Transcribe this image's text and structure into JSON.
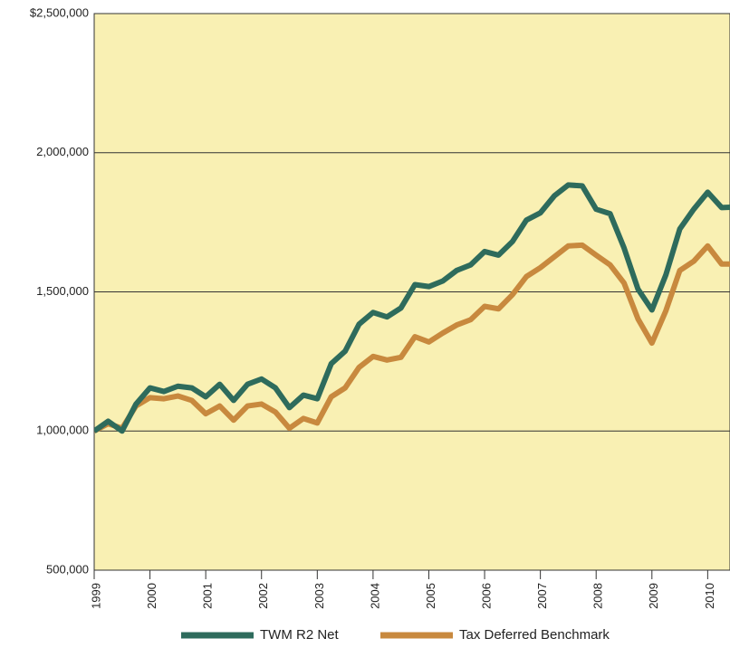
{
  "chart_data": {
    "type": "line",
    "x": [
      1999,
      1999.25,
      1999.5,
      1999.75,
      2000,
      2000.25,
      2000.5,
      2000.75,
      2001,
      2001.25,
      2001.5,
      2001.75,
      2002,
      2002.25,
      2002.5,
      2002.75,
      2003,
      2003.25,
      2003.5,
      2003.75,
      2004,
      2004.25,
      2004.5,
      2004.75,
      2005,
      2005.25,
      2005.5,
      2005.75,
      2006,
      2006.25,
      2006.5,
      2006.75,
      2007,
      2007.25,
      2007.5,
      2007.75,
      2008,
      2008.25,
      2008.5,
      2008.75,
      2009,
      2009.25,
      2009.5,
      2009.75,
      2010,
      2010.25,
      2010.5
    ],
    "series": [
      {
        "name": "TWM R2 Net",
        "color": "#2e6b5c",
        "values": [
          1000000,
          1035000,
          1000000,
          1097000,
          1155000,
          1142000,
          1161000,
          1155000,
          1123000,
          1168000,
          1110000,
          1168000,
          1187000,
          1155000,
          1084000,
          1129000,
          1116000,
          1242000,
          1287000,
          1384000,
          1426000,
          1410000,
          1442000,
          1526000,
          1519000,
          1539000,
          1577000,
          1597000,
          1645000,
          1632000,
          1681000,
          1758000,
          1784000,
          1845000,
          1884000,
          1881000,
          1797000,
          1781000,
          1658000,
          1510000,
          1435000,
          1561000,
          1726000,
          1797000,
          1858000,
          1803000,
          1805000
        ]
      },
      {
        "name": "Tax Deferred Benchmark",
        "color": "#c8893e",
        "values": [
          1000000,
          1026000,
          1010000,
          1090000,
          1120000,
          1116000,
          1126000,
          1110000,
          1062000,
          1090000,
          1039000,
          1090000,
          1097000,
          1068000,
          1010000,
          1045000,
          1029000,
          1123000,
          1155000,
          1229000,
          1268000,
          1255000,
          1265000,
          1339000,
          1320000,
          1352000,
          1381000,
          1400000,
          1448000,
          1439000,
          1490000,
          1555000,
          1587000,
          1626000,
          1665000,
          1668000,
          1632000,
          1597000,
          1532000,
          1403000,
          1316000,
          1432000,
          1577000,
          1610000,
          1665000,
          1600000,
          1600000
        ]
      }
    ],
    "xlim": [
      1999,
      2010.4
    ],
    "xticks": [
      1999,
      2000,
      2001,
      2002,
      2003,
      2004,
      2005,
      2006,
      2007,
      2008,
      2009,
      2010
    ],
    "ylim": [
      500000,
      2500000
    ],
    "yticks": [
      {
        "value": 500000,
        "label": "500,000"
      },
      {
        "value": 1000000,
        "label": "1,000,000"
      },
      {
        "value": 1500000,
        "label": "1,500,000"
      },
      {
        "value": 2000000,
        "label": "2,000,000"
      },
      {
        "value": 2500000,
        "label": "$2,500,000"
      }
    ],
    "grid": true,
    "background": "#f9f0b3",
    "legend": "bottom"
  }
}
